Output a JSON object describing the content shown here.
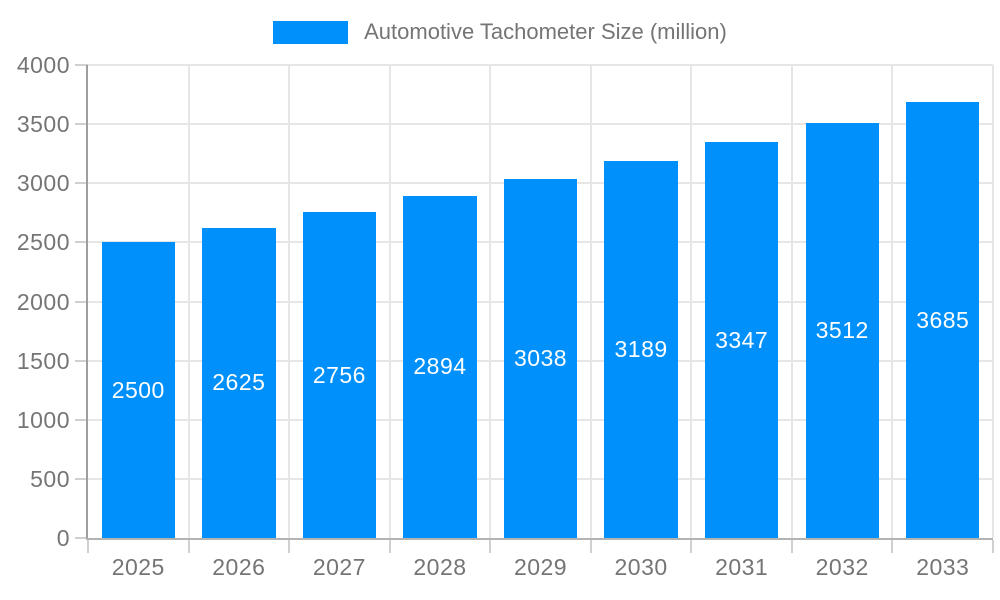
{
  "chart_data": {
    "type": "bar",
    "title": "Automotive Tachometer Size (million)",
    "categories": [
      "2025",
      "2026",
      "2027",
      "2028",
      "2029",
      "2030",
      "2031",
      "2032",
      "2033"
    ],
    "values": [
      2500,
      2625,
      2756,
      2894,
      3038,
      3189,
      3347,
      3512,
      3685
    ],
    "series_name": "Automotive Tachometer Size (million)",
    "xlabel": "",
    "ylabel": "",
    "ylim": [
      0,
      4000
    ],
    "y_ticks": [
      0,
      500,
      1000,
      1500,
      2000,
      2500,
      3000,
      3500,
      4000
    ],
    "grid": true,
    "bar_labels_visible": true,
    "legend": {
      "position": "top",
      "entries": [
        {
          "label": "Automotive Tachometer Size (million)",
          "marker_color": "#0090fb"
        }
      ]
    }
  },
  "colors": {
    "bar": "#0090fb",
    "bar_label_text": "#ffffff",
    "axis_label_text": "#757575",
    "legend_text": "#757575",
    "y_axis_line": "#9e9e9e",
    "x_axis_line": "#b3b3b3",
    "gridline": "#e6e6e6",
    "tick": "#d0d0d0",
    "background": "#ffffff"
  }
}
